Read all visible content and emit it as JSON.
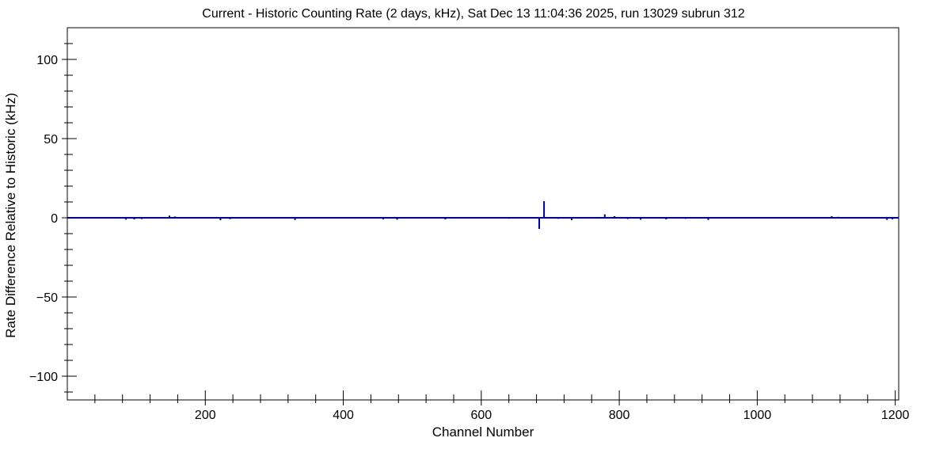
{
  "chart_data": {
    "type": "line",
    "title": "Current - Historic Counting Rate (2 days, kHz), Sat Dec 13 11:04:36 2025, run 13029 subrun 312",
    "xlabel": "Channel Number",
    "ylabel": "Rate Difference Relative to Historic (kHz)",
    "xlim": [
      0,
      1205
    ],
    "ylim": [
      -115,
      120
    ],
    "x_ticks": [
      200,
      400,
      600,
      800,
      1000,
      1200
    ],
    "y_ticks": [
      -100,
      -50,
      0,
      50,
      100
    ],
    "x_minor_step": 40,
    "y_minor_step": 10,
    "baseline": 0,
    "line_color": "#00008b",
    "frame_color": "#000000",
    "background": "#ffffff",
    "grid": false,
    "legend": "none",
    "spikes": [
      {
        "x": 85,
        "y": -1.2
      },
      {
        "x": 97,
        "y": -1.0
      },
      {
        "x": 108,
        "y": -0.8
      },
      {
        "x": 148,
        "y": 1.4
      },
      {
        "x": 156,
        "y": 0.8
      },
      {
        "x": 222,
        "y": -1.5
      },
      {
        "x": 236,
        "y": -0.9
      },
      {
        "x": 330,
        "y": -1.4
      },
      {
        "x": 458,
        "y": -1.0
      },
      {
        "x": 478,
        "y": -1.2
      },
      {
        "x": 548,
        "y": -1.0
      },
      {
        "x": 640,
        "y": -0.6
      },
      {
        "x": 684,
        "y": -7.0
      },
      {
        "x": 691,
        "y": 10.5
      },
      {
        "x": 712,
        "y": -0.7
      },
      {
        "x": 731,
        "y": -1.5
      },
      {
        "x": 779,
        "y": 2.2
      },
      {
        "x": 793,
        "y": 1.0
      },
      {
        "x": 812,
        "y": -0.8
      },
      {
        "x": 831,
        "y": -1.2
      },
      {
        "x": 868,
        "y": -1.0
      },
      {
        "x": 896,
        "y": -0.7
      },
      {
        "x": 929,
        "y": -1.4
      },
      {
        "x": 1108,
        "y": 1.0
      },
      {
        "x": 1118,
        "y": 0.6
      },
      {
        "x": 1188,
        "y": -1.3
      },
      {
        "x": 1196,
        "y": -1.0
      }
    ]
  }
}
